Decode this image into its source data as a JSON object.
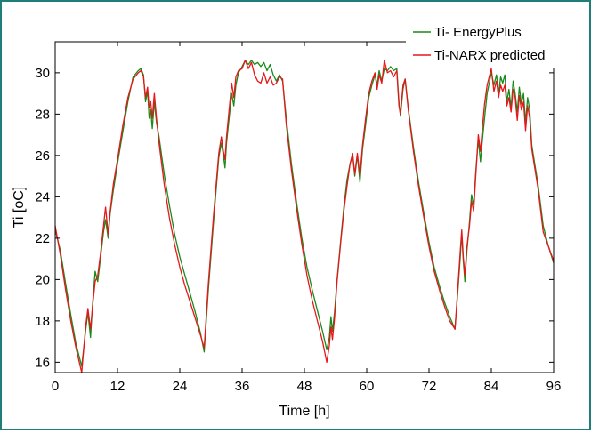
{
  "chart_data": {
    "type": "line",
    "title": "",
    "xlabel": "Time [h]",
    "ylabel": "Ti [oC]",
    "xlim": [
      0,
      96
    ],
    "ylim": [
      15.5,
      31.5
    ],
    "xticks": [
      0,
      12,
      24,
      36,
      48,
      60,
      72,
      84,
      96
    ],
    "yticks": [
      16,
      18,
      20,
      22,
      24,
      26,
      28,
      30
    ],
    "grid": false,
    "legend_position": "top-right",
    "colors": {
      "Ti- EnergyPlus": "#1a8a1a",
      "Ti-NARX predicted": "#e8161a"
    },
    "series": [
      {
        "name": "Ti- EnergyPlus",
        "points": [
          [
            0,
            22.4
          ],
          [
            1,
            21.4
          ],
          [
            2,
            19.8
          ],
          [
            3,
            18.3
          ],
          [
            4,
            16.9
          ],
          [
            5.1,
            15.8
          ],
          [
            5.9,
            17.6
          ],
          [
            6.3,
            18.4
          ],
          [
            6.8,
            17.2
          ],
          [
            7.2,
            18.8
          ],
          [
            7.7,
            20.4
          ],
          [
            8.2,
            19.9
          ],
          [
            8.7,
            21.0
          ],
          [
            9.3,
            22.3
          ],
          [
            9.7,
            22.9
          ],
          [
            10.2,
            22.0
          ],
          [
            10.6,
            23.2
          ],
          [
            11.2,
            24.3
          ],
          [
            12,
            25.6
          ],
          [
            13,
            27.1
          ],
          [
            14,
            28.6
          ],
          [
            15,
            29.8
          ],
          [
            16,
            30.1
          ],
          [
            16.5,
            30.2
          ],
          [
            17,
            29.9
          ],
          [
            17.4,
            28.6
          ],
          [
            17.8,
            29.1
          ],
          [
            18.1,
            27.8
          ],
          [
            18.4,
            28.2
          ],
          [
            18.7,
            27.3
          ],
          [
            19.1,
            28.6
          ],
          [
            19.5,
            27.6
          ],
          [
            20,
            26.9
          ],
          [
            21,
            25.1
          ],
          [
            22,
            23.6
          ],
          [
            23,
            22.2
          ],
          [
            24,
            21.1
          ],
          [
            25,
            20.2
          ],
          [
            26,
            19.3
          ],
          [
            27,
            18.4
          ],
          [
            28,
            17.4
          ],
          [
            28.7,
            16.5
          ],
          [
            29.5,
            19.5
          ],
          [
            30.5,
            22.8
          ],
          [
            31.5,
            25.9
          ],
          [
            32,
            26.6
          ],
          [
            32.4,
            26.0
          ],
          [
            32.7,
            25.4
          ],
          [
            33,
            26.6
          ],
          [
            33.5,
            27.8
          ],
          [
            34,
            29.0
          ],
          [
            34.4,
            28.4
          ],
          [
            34.8,
            29.4
          ],
          [
            35.3,
            30.0
          ],
          [
            36,
            30.3
          ],
          [
            36.6,
            30.6
          ],
          [
            37.2,
            30.4
          ],
          [
            37.8,
            30.6
          ],
          [
            38.4,
            30.4
          ],
          [
            39,
            30.5
          ],
          [
            39.6,
            30.3
          ],
          [
            40.2,
            30.5
          ],
          [
            40.8,
            30.1
          ],
          [
            41.4,
            30.4
          ],
          [
            42,
            29.9
          ],
          [
            42.6,
            29.6
          ],
          [
            43.2,
            29.9
          ],
          [
            43.8,
            29.6
          ],
          [
            44.5,
            27.8
          ],
          [
            45.5,
            25.6
          ],
          [
            46.5,
            23.7
          ],
          [
            47.5,
            22.0
          ],
          [
            48.5,
            20.6
          ],
          [
            49.5,
            19.5
          ],
          [
            50.5,
            18.5
          ],
          [
            51.5,
            17.5
          ],
          [
            52.3,
            16.6
          ],
          [
            52.8,
            17.2
          ],
          [
            53.1,
            18.2
          ],
          [
            53.4,
            17.5
          ],
          [
            53.8,
            18.4
          ],
          [
            54.3,
            20.0
          ],
          [
            55,
            21.9
          ],
          [
            55.6,
            23.5
          ],
          [
            56.2,
            24.8
          ],
          [
            56.8,
            25.6
          ],
          [
            57.3,
            26.0
          ],
          [
            57.7,
            25.0
          ],
          [
            58.2,
            26.0
          ],
          [
            58.7,
            24.7
          ],
          [
            59.2,
            26.3
          ],
          [
            59.8,
            27.5
          ],
          [
            60.4,
            28.8
          ],
          [
            61,
            29.4
          ],
          [
            61.6,
            29.9
          ],
          [
            62,
            29.4
          ],
          [
            62.4,
            30.1
          ],
          [
            62.9,
            29.6
          ],
          [
            63.4,
            30.2
          ],
          [
            64,
            30.1
          ],
          [
            64.6,
            30.3
          ],
          [
            65.2,
            30.1
          ],
          [
            65.8,
            30.2
          ],
          [
            66.2,
            28.6
          ],
          [
            66.5,
            27.9
          ],
          [
            67,
            29.2
          ],
          [
            67.4,
            29.7
          ],
          [
            68,
            28.3
          ],
          [
            69,
            26.4
          ],
          [
            70,
            24.7
          ],
          [
            71,
            23.2
          ],
          [
            72,
            21.8
          ],
          [
            73,
            20.6
          ],
          [
            74,
            19.7
          ],
          [
            75,
            18.9
          ],
          [
            76,
            18.2
          ],
          [
            77,
            17.6
          ],
          [
            77.6,
            19.6
          ],
          [
            78,
            21.0
          ],
          [
            78.3,
            22.2
          ],
          [
            78.6,
            20.9
          ],
          [
            78.9,
            19.9
          ],
          [
            79.3,
            21.4
          ],
          [
            79.8,
            22.8
          ],
          [
            80.2,
            24.1
          ],
          [
            80.6,
            23.6
          ],
          [
            81,
            25.2
          ],
          [
            81.5,
            26.8
          ],
          [
            81.9,
            25.7
          ],
          [
            82.3,
            26.8
          ],
          [
            82.7,
            27.8
          ],
          [
            83.2,
            29.0
          ],
          [
            84,
            30.0
          ],
          [
            84.5,
            29.4
          ],
          [
            85,
            29.9
          ],
          [
            85.4,
            29.0
          ],
          [
            85.8,
            29.8
          ],
          [
            86.2,
            29.5
          ],
          [
            86.6,
            29.9
          ],
          [
            87,
            28.6
          ],
          [
            87.4,
            29.2
          ],
          [
            87.8,
            28.3
          ],
          [
            88.2,
            29.6
          ],
          [
            88.6,
            29.0
          ],
          [
            89,
            28.1
          ],
          [
            89.4,
            29.3
          ],
          [
            89.8,
            28.5
          ],
          [
            90.2,
            29.0
          ],
          [
            90.6,
            27.6
          ],
          [
            91,
            28.8
          ],
          [
            91.4,
            28.2
          ],
          [
            91.8,
            26.5
          ],
          [
            92.3,
            25.7
          ],
          [
            93,
            24.6
          ],
          [
            94,
            22.6
          ],
          [
            95,
            21.6
          ],
          [
            96,
            20.8
          ]
        ]
      },
      {
        "name": "Ti-NARX predicted",
        "points": [
          [
            0,
            22.6
          ],
          [
            1,
            21.2
          ],
          [
            2,
            19.5
          ],
          [
            3,
            18.0
          ],
          [
            4,
            16.7
          ],
          [
            5.1,
            15.5
          ],
          [
            5.9,
            17.8
          ],
          [
            6.3,
            18.6
          ],
          [
            6.8,
            17.6
          ],
          [
            7.2,
            18.7
          ],
          [
            7.7,
            19.9
          ],
          [
            8.2,
            20.2
          ],
          [
            8.7,
            21.2
          ],
          [
            9.3,
            22.6
          ],
          [
            9.7,
            23.5
          ],
          [
            10.2,
            22.2
          ],
          [
            10.6,
            23.3
          ],
          [
            11.2,
            24.6
          ],
          [
            12,
            25.8
          ],
          [
            13,
            27.4
          ],
          [
            14,
            28.8
          ],
          [
            15,
            29.7
          ],
          [
            16,
            30.0
          ],
          [
            16.5,
            30.1
          ],
          [
            17,
            29.8
          ],
          [
            17.4,
            28.8
          ],
          [
            17.8,
            29.3
          ],
          [
            18.1,
            28.3
          ],
          [
            18.4,
            28.6
          ],
          [
            18.7,
            27.8
          ],
          [
            19.1,
            29.0
          ],
          [
            19.5,
            27.8
          ],
          [
            20,
            26.6
          ],
          [
            21,
            24.6
          ],
          [
            22,
            23.0
          ],
          [
            23,
            21.7
          ],
          [
            24,
            20.6
          ],
          [
            25,
            19.7
          ],
          [
            26,
            18.9
          ],
          [
            27,
            18.1
          ],
          [
            28,
            17.3
          ],
          [
            28.7,
            16.7
          ],
          [
            29.5,
            19.8
          ],
          [
            30.5,
            23.1
          ],
          [
            31.5,
            26.1
          ],
          [
            32,
            26.9
          ],
          [
            32.4,
            26.2
          ],
          [
            32.7,
            25.8
          ],
          [
            33,
            26.9
          ],
          [
            33.5,
            28.2
          ],
          [
            34,
            29.5
          ],
          [
            34.4,
            28.8
          ],
          [
            34.8,
            29.8
          ],
          [
            35.3,
            30.1
          ],
          [
            36,
            30.2
          ],
          [
            36.6,
            30.6
          ],
          [
            37.2,
            30.2
          ],
          [
            37.8,
            30.5
          ],
          [
            38.4,
            29.9
          ],
          [
            39,
            29.6
          ],
          [
            39.6,
            29.5
          ],
          [
            40.2,
            30.0
          ],
          [
            40.8,
            29.5
          ],
          [
            41.4,
            29.8
          ],
          [
            42,
            29.4
          ],
          [
            42.6,
            29.5
          ],
          [
            43.2,
            29.8
          ],
          [
            43.8,
            29.7
          ],
          [
            44.5,
            27.5
          ],
          [
            45.5,
            25.3
          ],
          [
            46.5,
            23.4
          ],
          [
            47.5,
            21.7
          ],
          [
            48.5,
            20.2
          ],
          [
            49.5,
            19.0
          ],
          [
            50.5,
            18.0
          ],
          [
            51.5,
            17.0
          ],
          [
            52.3,
            16.0
          ],
          [
            52.8,
            16.8
          ],
          [
            53.1,
            17.7
          ],
          [
            53.4,
            17.1
          ],
          [
            53.8,
            18.1
          ],
          [
            54.3,
            19.9
          ],
          [
            55,
            21.8
          ],
          [
            55.6,
            23.3
          ],
          [
            56.2,
            24.5
          ],
          [
            56.8,
            25.6
          ],
          [
            57.3,
            26.1
          ],
          [
            57.7,
            25.1
          ],
          [
            58.2,
            26.1
          ],
          [
            58.7,
            25.0
          ],
          [
            59.2,
            26.5
          ],
          [
            59.8,
            27.8
          ],
          [
            60.4,
            29.0
          ],
          [
            61,
            29.6
          ],
          [
            61.6,
            30.0
          ],
          [
            62,
            29.2
          ],
          [
            62.4,
            29.9
          ],
          [
            62.9,
            29.5
          ],
          [
            63.4,
            30.6
          ],
          [
            64,
            30.0
          ],
          [
            64.6,
            30.1
          ],
          [
            65.2,
            29.8
          ],
          [
            65.8,
            30.1
          ],
          [
            66.2,
            28.4
          ],
          [
            66.5,
            28.0
          ],
          [
            67,
            29.4
          ],
          [
            67.4,
            29.7
          ],
          [
            68,
            28.2
          ],
          [
            69,
            26.2
          ],
          [
            70,
            24.5
          ],
          [
            71,
            23.0
          ],
          [
            72,
            21.6
          ],
          [
            73,
            20.4
          ],
          [
            74,
            19.5
          ],
          [
            75,
            18.7
          ],
          [
            76,
            18.0
          ],
          [
            77,
            17.6
          ],
          [
            77.6,
            19.8
          ],
          [
            78,
            21.3
          ],
          [
            78.3,
            22.4
          ],
          [
            78.6,
            21.1
          ],
          [
            78.9,
            20.2
          ],
          [
            79.3,
            21.6
          ],
          [
            79.8,
            22.6
          ],
          [
            80.2,
            23.8
          ],
          [
            80.6,
            23.3
          ],
          [
            81,
            25.0
          ],
          [
            81.5,
            27.0
          ],
          [
            81.9,
            26.2
          ],
          [
            82.3,
            27.4
          ],
          [
            82.7,
            28.5
          ],
          [
            83.2,
            29.4
          ],
          [
            84,
            30.2
          ],
          [
            84.5,
            29.1
          ],
          [
            85,
            29.6
          ],
          [
            85.4,
            28.8
          ],
          [
            85.8,
            29.4
          ],
          [
            86.2,
            29.1
          ],
          [
            86.6,
            29.4
          ],
          [
            87,
            28.4
          ],
          [
            87.4,
            28.8
          ],
          [
            87.8,
            28.1
          ],
          [
            88.2,
            29.2
          ],
          [
            88.6,
            28.8
          ],
          [
            89,
            27.7
          ],
          [
            89.4,
            28.9
          ],
          [
            89.8,
            28.2
          ],
          [
            90.2,
            28.6
          ],
          [
            90.6,
            27.2
          ],
          [
            91,
            28.4
          ],
          [
            91.4,
            27.8
          ],
          [
            91.8,
            26.3
          ],
          [
            92.3,
            25.5
          ],
          [
            93,
            24.4
          ],
          [
            94,
            22.3
          ],
          [
            95,
            21.6
          ],
          [
            96,
            20.9
          ]
        ]
      }
    ]
  }
}
